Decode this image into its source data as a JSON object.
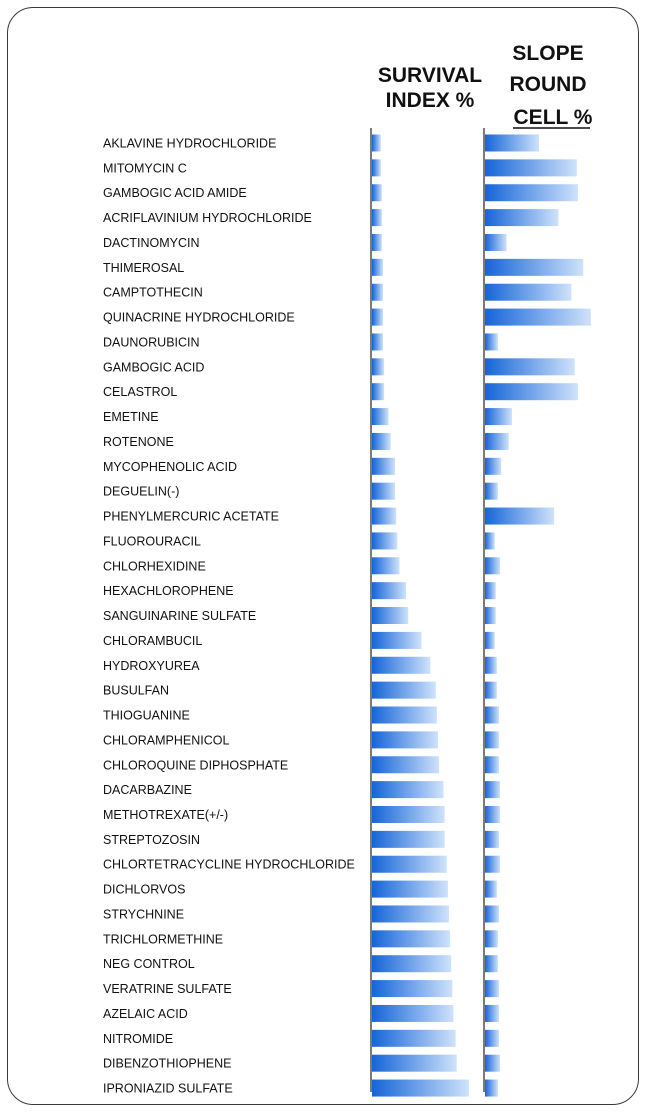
{
  "chart_data": {
    "type": "bar",
    "orientation": "horizontal",
    "title": "",
    "series": [
      {
        "name": "SURVIVAL INDEX %",
        "header_lines": [
          "SURVIVAL",
          "INDEX %"
        ],
        "color": "#1e6fe0"
      },
      {
        "name": "SLOPE ROUND CELL %",
        "header_lines": [
          "SLOPE",
          "ROUND",
          "CELL %"
        ],
        "color": "#1e6fe0"
      }
    ],
    "categories": [
      "AKLAVINE HYDROCHLORIDE",
      "MITOMYCIN C",
      "GAMBOGIC ACID AMIDE",
      "ACRIFLAVINIUM HYDROCHLORIDE",
      "DACTINOMYCIN",
      "THIMEROSAL",
      "CAMPTOTHECIN",
      "QUINACRINE HYDROCHLORIDE",
      "DAUNORUBICIN",
      "GAMBOGIC ACID",
      "CELASTROL",
      "EMETINE",
      "ROTENONE",
      "MYCOPHENOLIC ACID",
      "DEGUELIN(-)",
      "PHENYLMERCURIC ACETATE",
      "FLUOROURACIL",
      "CHLORHEXIDINE",
      "HEXACHLOROPHENE",
      "SANGUINARINE SULFATE",
      "CHLORAMBUCIL",
      "HYDROXYUREA",
      "BUSULFAN",
      "THIOGUANINE",
      "CHLORAMPHENICOL",
      "CHLOROQUINE DIPHOSPHATE",
      "DACARBAZINE",
      "METHOTREXATE(+/-)",
      "STREPTOZOSIN",
      "CHLORTETRACYCLINE HYDROCHLORIDE",
      "DICHLORVOS",
      "STRYCHNINE",
      "TRICHLORMETHINE",
      "NEG CONTROL",
      "VERATRINE SULFATE",
      "AZELAIC ACID",
      "NITROMIDE",
      "DIBENZOTHIOPHENE",
      "IPRONIAZID SULFATE"
    ],
    "survival_index": [
      8,
      8,
      9,
      9,
      9,
      10,
      10,
      10,
      10,
      11,
      11,
      15,
      17,
      21,
      21,
      22,
      23,
      25,
      31,
      33,
      45,
      53,
      58,
      59,
      60,
      61,
      65,
      66,
      66,
      68,
      69,
      70,
      71,
      72,
      73,
      74,
      76,
      77,
      88
    ],
    "slope_round_cell": [
      50,
      85,
      86,
      68,
      20,
      91,
      80,
      98,
      12,
      83,
      86,
      25,
      22,
      15,
      12,
      64,
      9,
      14,
      10,
      10,
      9,
      11,
      11,
      13,
      13,
      13,
      14,
      14,
      13,
      14,
      11,
      13,
      12,
      12,
      13,
      13,
      13,
      14,
      12
    ],
    "xlim": [
      0,
      100
    ],
    "grid": false,
    "legend": "none"
  }
}
